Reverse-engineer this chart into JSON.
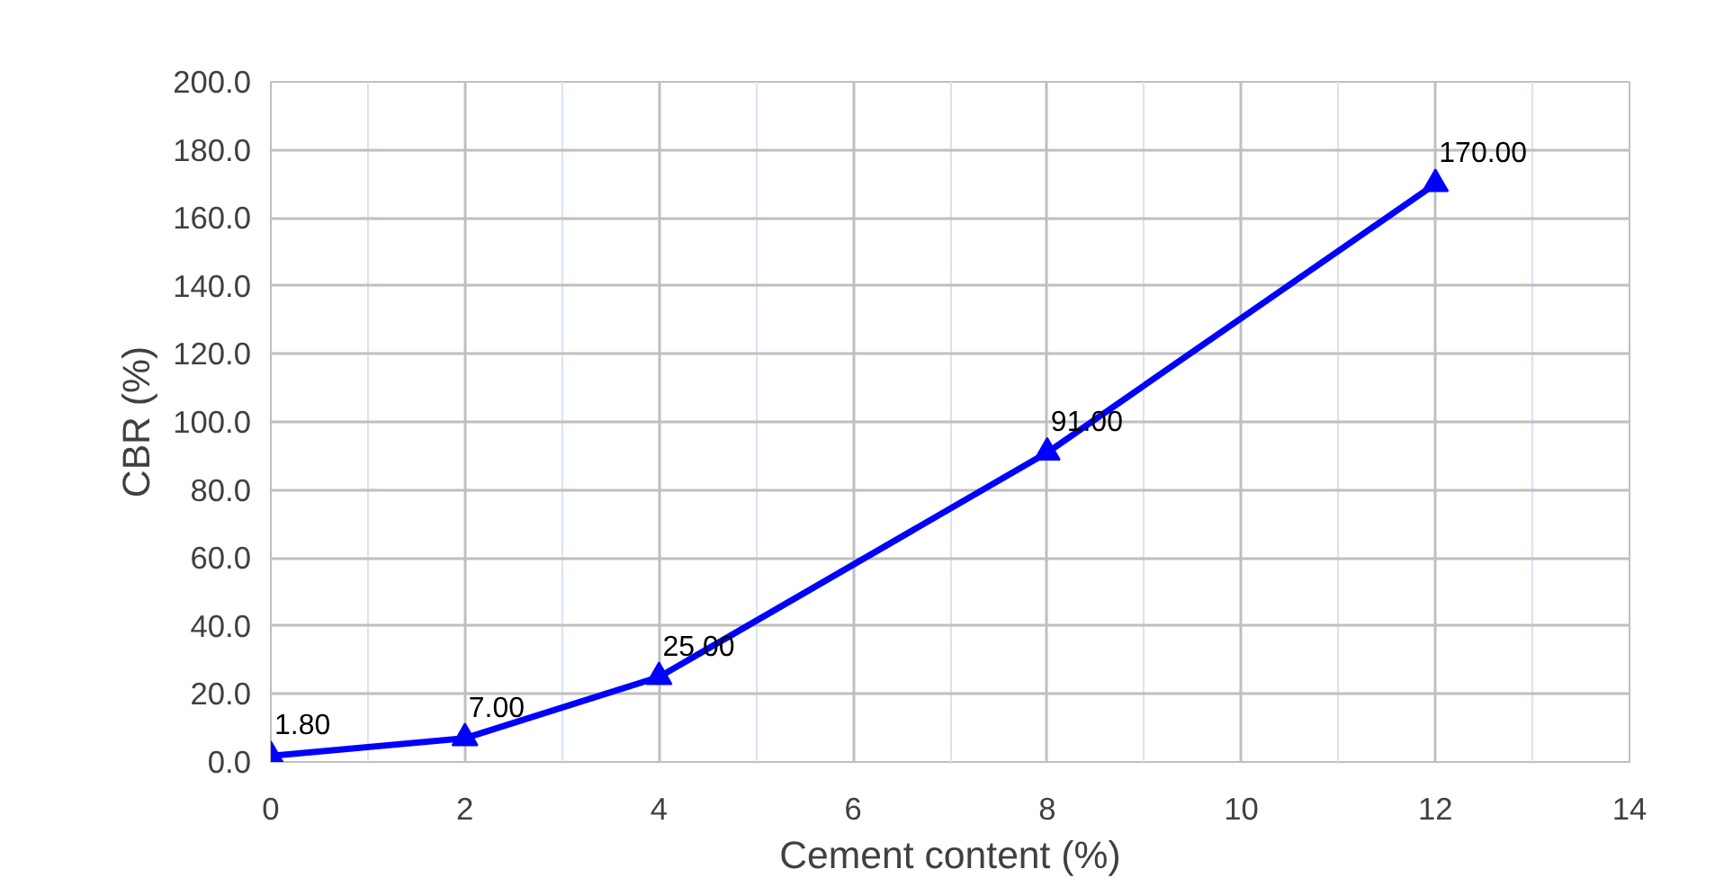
{
  "chart_data": {
    "type": "line",
    "xlabel": "Cement content (%)",
    "ylabel": "CBR (%)",
    "x": [
      0,
      2,
      4,
      8,
      12
    ],
    "series": [
      {
        "color": "#0000ff",
        "values": [
          1.8,
          7,
          25,
          91,
          170
        ],
        "value_labels": [
          "1.80",
          "7.00",
          "25.00",
          "91.00",
          "170.00"
        ]
      }
    ],
    "xlim": [
      0,
      14
    ],
    "xticks": [
      0,
      2,
      4,
      6,
      8,
      10,
      12,
      14
    ],
    "ylim": [
      0,
      200
    ],
    "yticks": [
      {
        "value": 0,
        "label": "0.0"
      },
      {
        "value": 20,
        "label": "20.0"
      },
      {
        "value": 40,
        "label": "40.0"
      },
      {
        "value": 60,
        "label": "60.0"
      },
      {
        "value": 80,
        "label": "80.0"
      },
      {
        "value": 100,
        "label": "100.0"
      },
      {
        "value": 120,
        "label": "120.0"
      },
      {
        "value": 140,
        "label": "140.0"
      },
      {
        "value": 160,
        "label": "160.0"
      },
      {
        "value": 180,
        "label": "180.0"
      },
      {
        "value": 200,
        "label": "200.0"
      }
    ],
    "grid": true,
    "marker": "triangle",
    "line_style": "solid"
  }
}
